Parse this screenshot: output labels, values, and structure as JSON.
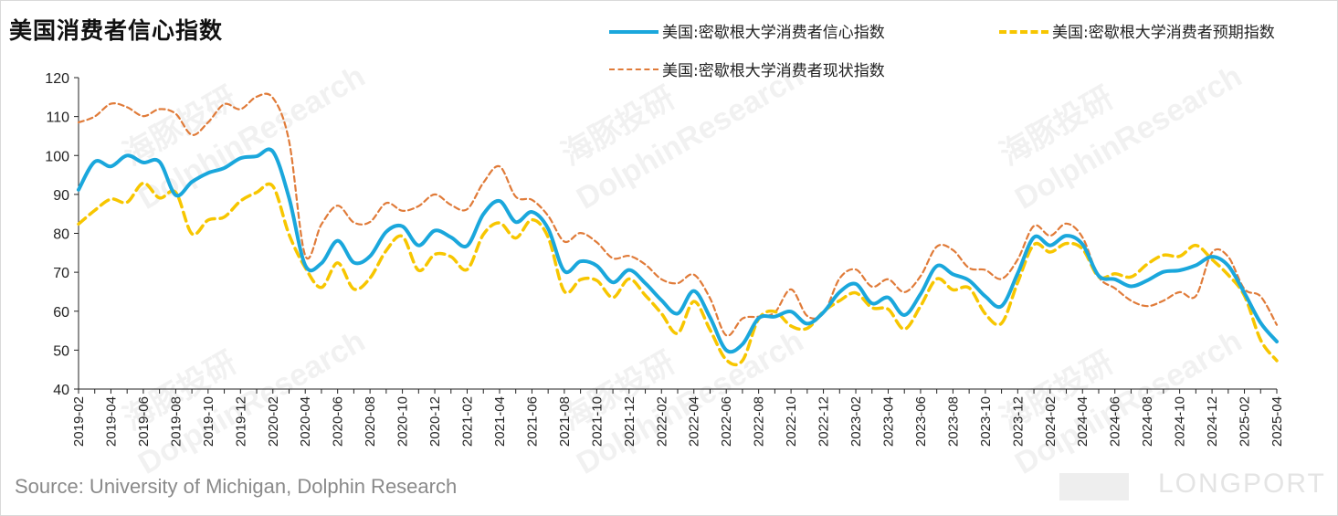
{
  "title": "美国消费者信心指数",
  "source": "Source: University of Michigan, Dolphin Research",
  "brand": "LONGPORT",
  "watermark": {
    "cn": "海豚投研",
    "en": "DolphinResearch"
  },
  "colors": {
    "confidence": "#1aa7dc",
    "expectations": "#f7c600",
    "current": "#e07b39"
  },
  "chart_data": {
    "type": "line",
    "title": "美国消费者信心指数",
    "xlabel": "",
    "ylabel": "",
    "ylim": [
      40,
      120
    ],
    "yticks": [
      40,
      50,
      60,
      70,
      80,
      90,
      100,
      110,
      120
    ],
    "grid": false,
    "legend_position": "top-right",
    "x_tick_labels": [
      "2019-02",
      "2019-04",
      "2019-06",
      "2019-08",
      "2019-10",
      "2019-12",
      "2020-02",
      "2020-04",
      "2020-06",
      "2020-08",
      "2020-10",
      "2020-12",
      "2021-02",
      "2021-04",
      "2021-06",
      "2021-08",
      "2021-10",
      "2021-12",
      "2022-02",
      "2022-04",
      "2022-06",
      "2022-08",
      "2022-10",
      "2022-12",
      "2023-02",
      "2023-04",
      "2023-06",
      "2023-08",
      "2023-10",
      "2023-12",
      "2024-02",
      "2024-04",
      "2024-06",
      "2024-08",
      "2024-10",
      "2024-12",
      "2025-02",
      "2025-04"
    ],
    "x": [
      "2019-02",
      "2019-03",
      "2019-04",
      "2019-05",
      "2019-06",
      "2019-07",
      "2019-08",
      "2019-09",
      "2019-10",
      "2019-11",
      "2019-12",
      "2020-01",
      "2020-02",
      "2020-03",
      "2020-04",
      "2020-05",
      "2020-06",
      "2020-07",
      "2020-08",
      "2020-09",
      "2020-10",
      "2020-11",
      "2020-12",
      "2021-01",
      "2021-02",
      "2021-03",
      "2021-04",
      "2021-05",
      "2021-06",
      "2021-07",
      "2021-08",
      "2021-09",
      "2021-10",
      "2021-11",
      "2021-12",
      "2022-01",
      "2022-02",
      "2022-03",
      "2022-04",
      "2022-05",
      "2022-06",
      "2022-07",
      "2022-08",
      "2022-09",
      "2022-10",
      "2022-11",
      "2022-12",
      "2023-01",
      "2023-02",
      "2023-03",
      "2023-04",
      "2023-05",
      "2023-06",
      "2023-07",
      "2023-08",
      "2023-09",
      "2023-10",
      "2023-11",
      "2023-12",
      "2024-01",
      "2024-02",
      "2024-03",
      "2024-04",
      "2024-05",
      "2024-06",
      "2024-07",
      "2024-08",
      "2024-09",
      "2024-10",
      "2024-11",
      "2024-12",
      "2025-01",
      "2025-02",
      "2025-03",
      "2025-04"
    ],
    "series": [
      {
        "name": "美国:密歇根大学消费者信心指数",
        "style": "solid",
        "values": [
          91.2,
          98.4,
          97.2,
          100.0,
          98.2,
          98.4,
          89.8,
          93.2,
          95.5,
          96.8,
          99.3,
          99.8,
          101.0,
          89.1,
          71.8,
          72.3,
          78.1,
          72.5,
          74.1,
          80.4,
          81.8,
          76.9,
          80.7,
          79.0,
          76.8,
          84.9,
          88.3,
          82.9,
          85.5,
          81.2,
          70.3,
          72.8,
          71.7,
          67.4,
          70.6,
          67.2,
          62.8,
          59.4,
          65.2,
          58.4,
          50.0,
          51.5,
          58.2,
          58.6,
          59.9,
          56.8,
          59.7,
          64.9,
          67.0,
          62.0,
          63.5,
          59.0,
          64.4,
          71.6,
          69.5,
          67.9,
          63.8,
          61.3,
          69.7,
          79.0,
          76.9,
          79.4,
          77.2,
          69.1,
          68.2,
          66.4,
          67.9,
          70.1,
          70.5,
          71.8,
          74.0,
          71.7,
          64.7,
          57.0,
          52.2
        ]
      },
      {
        "name": "美国:密歇根大学消费者预期指数",
        "style": "dashed",
        "values": [
          82.4,
          85.9,
          88.8,
          88.0,
          92.9,
          89.1,
          90.5,
          79.9,
          83.4,
          84.2,
          88.3,
          90.5,
          92.1,
          79.7,
          71.2,
          66.1,
          72.4,
          65.7,
          68.5,
          75.6,
          79.2,
          70.5,
          74.6,
          74.0,
          70.7,
          79.7,
          82.7,
          78.8,
          83.5,
          79.0,
          65.1,
          68.1,
          67.9,
          63.5,
          68.3,
          64.1,
          59.4,
          54.3,
          62.5,
          55.2,
          47.5,
          47.3,
          58.0,
          59.9,
          56.2,
          55.6,
          59.9,
          62.7,
          64.7,
          60.9,
          60.5,
          55.4,
          61.3,
          68.3,
          65.5,
          66.0,
          59.3,
          56.9,
          67.4,
          77.1,
          75.2,
          77.4,
          76.0,
          68.8,
          69.6,
          68.8,
          72.1,
          74.4,
          74.1,
          76.9,
          73.3,
          69.3,
          64.0,
          52.6,
          47.3
        ]
      },
      {
        "name": "美国:密歇根大学消费者现状指数",
        "style": "dotted",
        "values": [
          108.5,
          110.0,
          113.3,
          112.4,
          110.1,
          111.9,
          110.7,
          105.3,
          108.5,
          113.2,
          111.9,
          115.1,
          114.8,
          103.7,
          74.3,
          82.3,
          87.1,
          82.8,
          82.9,
          87.8,
          85.8,
          87.0,
          90.0,
          87.3,
          86.2,
          93.0,
          97.2,
          89.4,
          88.6,
          84.5,
          77.9,
          80.1,
          77.7,
          73.6,
          74.2,
          72.0,
          68.2,
          67.2,
          69.4,
          63.3,
          53.8,
          58.1,
          58.6,
          59.7,
          65.6,
          58.8,
          59.4,
          68.4,
          70.7,
          66.3,
          68.2,
          64.9,
          69.0,
          76.6,
          75.7,
          71.1,
          70.6,
          68.3,
          73.3,
          81.9,
          79.4,
          82.5,
          79.0,
          68.8,
          65.9,
          62.7,
          61.3,
          62.7,
          64.9,
          63.9,
          75.1,
          74.0,
          65.7,
          63.8,
          56.5
        ]
      }
    ]
  }
}
